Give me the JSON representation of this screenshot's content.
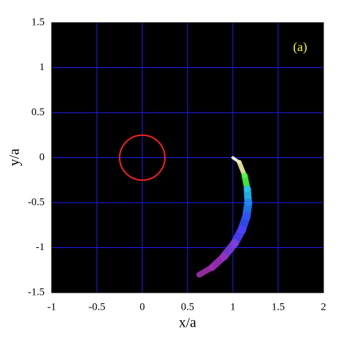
{
  "chart_data": {
    "type": "scatter",
    "annotation": "(a)",
    "annotation_color": "#ffff00",
    "xlabel": "x/a",
    "ylabel": "y/a",
    "xlim": [
      -1,
      2
    ],
    "ylim": [
      -1.5,
      1.5
    ],
    "xticks": [
      -1,
      -0.5,
      0,
      0.5,
      1,
      1.5,
      2
    ],
    "yticks": [
      -1.5,
      -1,
      -0.5,
      0,
      0.5,
      1,
      1.5
    ],
    "grid": true,
    "grid_color": "#2020ff",
    "background": "#000000",
    "circle": {
      "center": [
        0,
        0
      ],
      "radius": 0.25,
      "color": "#ff2020"
    },
    "series": [
      {
        "x": [
          1.0,
          1.07,
          1.13,
          1.16,
          1.17,
          1.15,
          1.1,
          1.02,
          0.9,
          0.77,
          0.63
        ],
        "values": [
          0.0,
          -0.05,
          -0.2,
          -0.35,
          -0.5,
          -0.65,
          -0.8,
          -0.95,
          -1.1,
          -1.22,
          -1.3
        ],
        "colors": [
          "#ffffff",
          "#f0f0a0",
          "#40ff40",
          "#20c0ff",
          "#2080ff",
          "#3050ff",
          "#5040ff",
          "#8040e0",
          "#a030c0",
          "#a030b0",
          "#802090"
        ]
      }
    ]
  }
}
